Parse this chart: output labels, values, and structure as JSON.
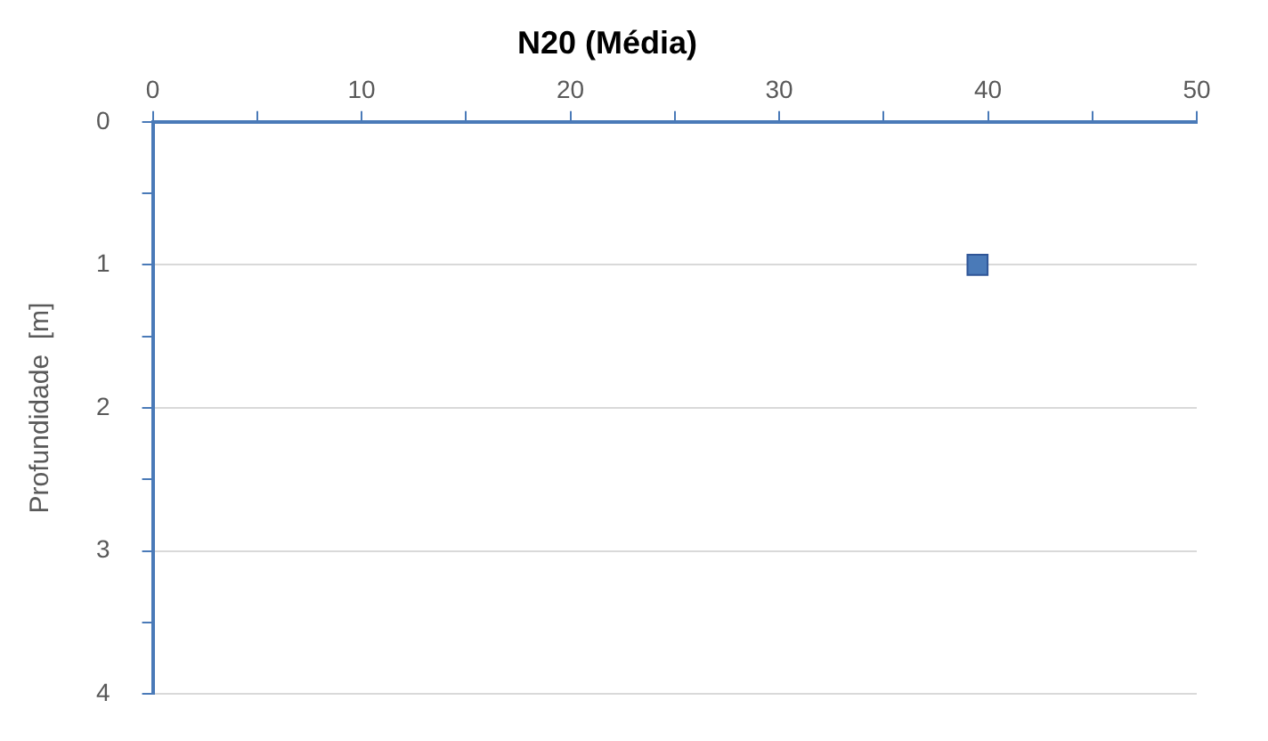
{
  "chart_data": {
    "type": "scatter",
    "title": "N20 (Média)",
    "ylabel": "Profundidade  [m]",
    "x": [
      39.5
    ],
    "series": [
      {
        "color": "#4a7ab8",
        "values": [
          1
        ]
      }
    ],
    "xlim": [
      0,
      50
    ],
    "xticks": [
      0,
      {
        "value": 5,
        "label": null
      },
      10,
      {
        "value": 15,
        "label": null
      },
      20,
      {
        "value": 25,
        "label": null
      },
      30,
      {
        "value": 35,
        "label": null
      },
      40,
      {
        "value": 45,
        "label": null
      },
      50
    ],
    "ylim": [
      4,
      0
    ],
    "yticks": [
      0,
      {
        "value": 0.5,
        "label": null
      },
      1,
      {
        "value": 1.5,
        "label": null
      },
      2,
      {
        "value": 2.5,
        "label": null
      },
      3,
      {
        "value": 3.5,
        "label": null
      },
      4
    ],
    "grid": "y",
    "legend": false,
    "marker": "square"
  }
}
